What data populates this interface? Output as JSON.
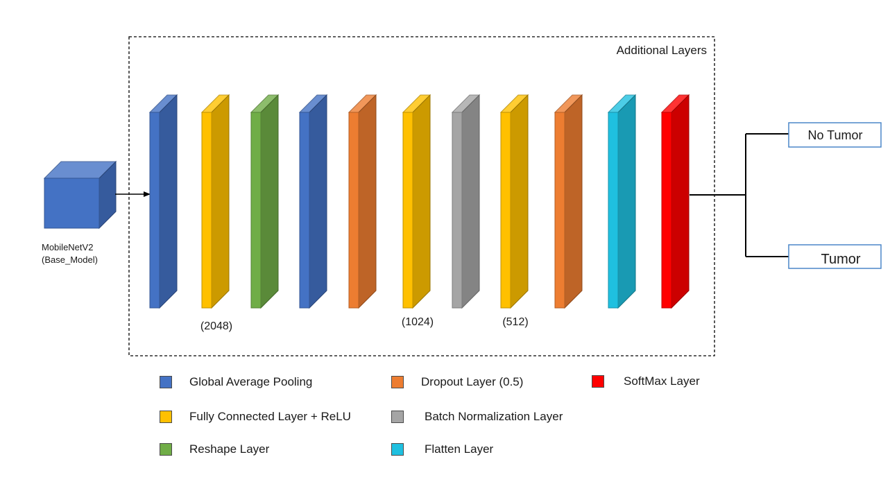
{
  "base_model": {
    "name": "MobileNetV2",
    "sub": "(Base_Model)",
    "color": "#4472C4"
  },
  "container_label": "Additional Layers",
  "layer_types": {
    "gap": {
      "name": "Global Average Pooling",
      "color": "#4472C4"
    },
    "fc": {
      "name": "Fully Connected Layer + ReLU",
      "color": "#FFC000"
    },
    "rs": {
      "name": "Reshape Layer",
      "color": "#70AD47"
    },
    "dr": {
      "name": "Dropout Layer  (0.5)",
      "color": "#ED7D31"
    },
    "bn": {
      "name": "Batch Normalization Layer",
      "color": "#A5A5A5"
    },
    "fl": {
      "name": "Flatten Layer",
      "color": "#1FC0E0"
    },
    "sm": {
      "name": "SoftMax Layer",
      "color": "#FF0000"
    }
  },
  "layers": [
    {
      "type": "gap",
      "label": ""
    },
    {
      "type": "fc",
      "label": "(2048)"
    },
    {
      "type": "rs",
      "label": ""
    },
    {
      "type": "gap",
      "label": ""
    },
    {
      "type": "dr",
      "label": ""
    },
    {
      "type": "fc",
      "label": "(1024)"
    },
    {
      "type": "bn",
      "label": ""
    },
    {
      "type": "fc",
      "label": "(512)"
    },
    {
      "type": "dr",
      "label": ""
    },
    {
      "type": "fl",
      "label": ""
    },
    {
      "type": "sm",
      "label": ""
    }
  ],
  "outputs": [
    "No Tumor",
    "Tumor"
  ],
  "legend": {
    "col1": [
      "gap",
      "fc",
      "rs"
    ],
    "col2": [
      "dr",
      "bn",
      "fl"
    ],
    "col3": [
      "sm"
    ]
  }
}
